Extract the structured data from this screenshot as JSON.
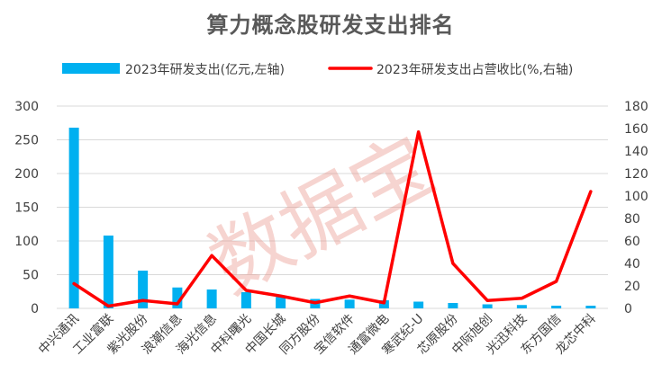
{
  "chart_data": {
    "type": "bar",
    "title": "算力概念股研发支出排名",
    "categories": [
      "中兴通讯",
      "工业富联",
      "紫光股份",
      "浪潮信息",
      "海光信息",
      "中科曙光",
      "中国长城",
      "同方股份",
      "宝信软件",
      "通富微电",
      "寒武纪-U",
      "芯原股份",
      "中际旭创",
      "光迅科技",
      "东方国信",
      "龙芯中科"
    ],
    "series": [
      {
        "name": "2023年研发支出(亿元,左轴)",
        "type": "bar",
        "axis": "left",
        "values": [
          268,
          108,
          56,
          31,
          28,
          24,
          17,
          14,
          13,
          12,
          10,
          8,
          6,
          5,
          4,
          4
        ]
      },
      {
        "name": "2023年研发支出占营收比(%,右轴)",
        "type": "line",
        "axis": "right",
        "values": [
          22,
          2,
          7,
          4,
          47,
          16,
          11,
          5,
          11,
          5,
          157,
          40,
          7,
          9,
          24,
          104
        ]
      }
    ],
    "y_left": {
      "min": 0,
      "max": 300,
      "ticks": [
        "0",
        "50",
        "100",
        "150",
        "200",
        "250",
        "300"
      ]
    },
    "y_right": {
      "min": 0,
      "max": 180,
      "ticks": [
        "0",
        "20",
        "40",
        "60",
        "80",
        "100",
        "120",
        "140",
        "160",
        "180"
      ]
    },
    "grid": true,
    "legend_position": "top",
    "watermark": "数据宝",
    "colors": {
      "bar": "#00b0f0",
      "line": "#ff0000",
      "grid": "#d9d9d9",
      "text": "#404040",
      "title": "#595959"
    }
  }
}
